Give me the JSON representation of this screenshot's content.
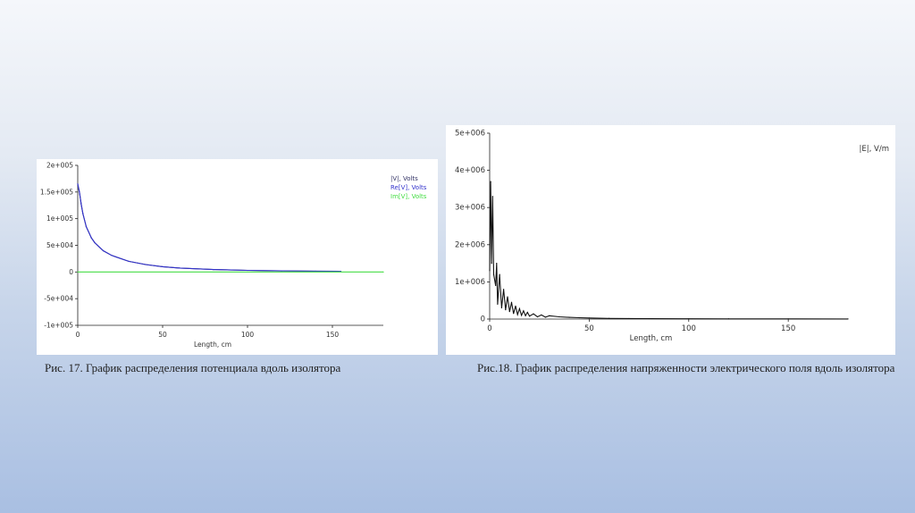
{
  "captions": {
    "fig17": "Рис. 17. График распределения потенциала вдоль изолятора",
    "fig18": "Рис.18. График распределения напряженности электрического поля вдоль изолятора"
  },
  "chart_data": [
    {
      "type": "line",
      "xlabel": "Length, cm",
      "ylabel": "",
      "xlim": [
        0,
        180
      ],
      "ylim": [
        -100000,
        200000
      ],
      "x_ticks": [
        "0",
        "50",
        "100",
        "150"
      ],
      "x_tick_values": [
        0,
        50,
        100,
        150
      ],
      "y_ticks": [
        "2e+005",
        "1.5e+005",
        "1e+005",
        "5e+004",
        "0",
        "-5e+004",
        "-1e+005"
      ],
      "y_tick_values": [
        200000,
        150000,
        100000,
        50000,
        0,
        -50000,
        -100000
      ],
      "grid": false,
      "legend_position": "top-right",
      "series": [
        {
          "name": "|V|, Volts",
          "color": "#333366",
          "x": [
            0,
            1,
            2,
            3,
            5,
            8,
            10,
            15,
            20,
            30,
            40,
            50,
            60,
            80,
            100,
            120,
            140,
            155
          ],
          "y": [
            165000,
            150000,
            128000,
            110000,
            85000,
            64000,
            55000,
            40000,
            31000,
            20000,
            14000,
            10000,
            7500,
            4500,
            3000,
            2000,
            1500,
            1200
          ]
        },
        {
          "name": "Re[V], Volts",
          "color": "#3333cc",
          "x": [
            0,
            1,
            2,
            3,
            5,
            8,
            10,
            15,
            20,
            30,
            40,
            50,
            60,
            80,
            100,
            120,
            140,
            155
          ],
          "y": [
            165000,
            150000,
            128000,
            110000,
            85000,
            64000,
            55000,
            40000,
            31000,
            20000,
            14000,
            10000,
            7500,
            4500,
            3000,
            2000,
            1500,
            1200
          ]
        },
        {
          "name": "Im[V], Volts",
          "color": "#44dd44",
          "x": [
            0,
            180
          ],
          "y": [
            0,
            0
          ]
        }
      ]
    },
    {
      "type": "line",
      "xlabel": "Length, cm",
      "ylabel": "",
      "xlim": [
        0,
        180
      ],
      "ylim": [
        0,
        5000000
      ],
      "x_ticks": [
        "0",
        "50",
        "100",
        "150"
      ],
      "x_tick_values": [
        0,
        50,
        100,
        150
      ],
      "y_ticks": [
        "5e+006",
        "4e+006",
        "3e+006",
        "2e+006",
        "1e+006",
        "0"
      ],
      "y_tick_values": [
        5000000,
        4000000,
        3000000,
        2000000,
        1000000,
        0
      ],
      "grid": false,
      "legend_position": "top-right",
      "series": [
        {
          "name": "|E|, V/m",
          "color": "#111111",
          "x": [
            0,
            0.5,
            1,
            1.5,
            2,
            3,
            3.5,
            4,
            5,
            6,
            7,
            8,
            9,
            10,
            11,
            12,
            13,
            14,
            15,
            16,
            17,
            18,
            19,
            20,
            22,
            24,
            26,
            28,
            30,
            35,
            40,
            45,
            50,
            55,
            60,
            70,
            80,
            100,
            120,
            150,
            180
          ],
          "y": [
            1300000,
            3700000,
            1500000,
            3300000,
            1200000,
            900000,
            1500000,
            400000,
            1200000,
            300000,
            800000,
            250000,
            600000,
            200000,
            450000,
            150000,
            350000,
            120000,
            280000,
            100000,
            220000,
            90000,
            180000,
            80000,
            140000,
            60000,
            110000,
            50000,
            90000,
            60000,
            45000,
            35000,
            28000,
            22000,
            18000,
            14000,
            11000,
            8000,
            6000,
            4000,
            3000
          ]
        }
      ]
    }
  ]
}
